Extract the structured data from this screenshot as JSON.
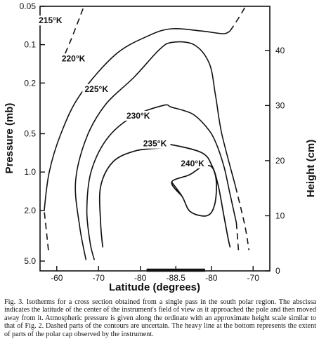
{
  "chart_data": {
    "type": "contour",
    "title": "",
    "xlabel": "Latitude (degrees)",
    "ylabel_left": "Pressure (mb)",
    "ylabel_right": "Height (cm)",
    "x_ticks": [
      "-60",
      "-70",
      "-80",
      "-88.5",
      "-80",
      "-70"
    ],
    "y_left_ticks": [
      "0.05",
      "0.1",
      "0.2",
      "0.5",
      "1.0",
      "2.0",
      "5.0"
    ],
    "y_right_ticks": [
      "0",
      "10",
      "20",
      "30",
      "40"
    ],
    "y_left_scale": "log",
    "ylim_pressure": [
      5.0,
      0.05
    ],
    "ylim_height": [
      0,
      48
    ],
    "contours": [
      {
        "label": "215°K",
        "style": "dashed",
        "points": [
          [
            -61.0,
            0.14
          ],
          [
            -63.5,
            0.09
          ],
          [
            -66.5,
            0.05
          ]
        ]
      },
      {
        "label": "220°K",
        "style": "mixed",
        "points": [
          [
            -58.0,
            4.1
          ],
          [
            -57.0,
            2.0
          ],
          [
            -58.2,
            1.0
          ],
          [
            -61.0,
            0.5
          ],
          [
            -65.5,
            0.25
          ],
          [
            -74.0,
            0.12
          ],
          [
            -82.0,
            0.085
          ],
          [
            -87.5,
            0.075
          ],
          [
            -82.5,
            0.078
          ],
          [
            -77.2,
            0.082
          ],
          [
            -75.5,
            0.078
          ],
          [
            -73.5,
            0.062
          ],
          [
            -71.8,
            0.05
          ]
        ],
        "dashed_segments": [
          [
            0,
            1
          ],
          [
            10,
            12
          ]
        ]
      },
      {
        "label": "225°K",
        "style": "mixed",
        "points": [
          [
            -67.0,
            4.9
          ],
          [
            -65.5,
            2.7
          ],
          [
            -64.5,
            1.2
          ],
          [
            -67.0,
            0.55
          ],
          [
            -71.5,
            0.3
          ],
          [
            -78.5,
            0.18
          ],
          [
            -84.5,
            0.11
          ],
          [
            -87.5,
            0.096
          ],
          [
            -84.2,
            0.1
          ],
          [
            -80.5,
            0.14
          ],
          [
            -79.0,
            0.25
          ],
          [
            -77.5,
            0.5
          ],
          [
            -74.2,
            1.3
          ],
          [
            -72.0,
            2.6
          ],
          [
            -71.0,
            4.1
          ]
        ],
        "dashed_segments": [
          [
            12,
            14
          ]
        ]
      },
      {
        "label": "230°K",
        "style": "mixed",
        "points": [
          [
            -69.0,
            4.9
          ],
          [
            -68.0,
            3.6
          ],
          [
            -67.2,
            2.0
          ],
          [
            -68.2,
            1.0
          ],
          [
            -72.0,
            0.55
          ],
          [
            -78.0,
            0.37
          ],
          [
            -85.5,
            0.3
          ],
          [
            -87.5,
            0.31
          ],
          [
            -84.5,
            0.35
          ],
          [
            -81.0,
            0.45
          ],
          [
            -79.0,
            0.58
          ],
          [
            -77.0,
            0.9
          ],
          [
            -75.5,
            1.5
          ],
          [
            -74.0,
            2.5
          ],
          [
            -73.5,
            4.1
          ]
        ],
        "dashed_segments": [
          [
            13,
            14
          ]
        ]
      },
      {
        "label": "235°K",
        "style": "solid",
        "points": [
          [
            -71.0,
            3.9
          ],
          [
            -70.5,
            2.5
          ],
          [
            -70.5,
            1.3
          ],
          [
            -73.5,
            0.83
          ],
          [
            -79.0,
            0.68
          ],
          [
            -86.0,
            0.64
          ],
          [
            -86.0,
            0.6
          ],
          [
            -82.5,
            0.7
          ],
          [
            -79.8,
            0.9
          ],
          [
            -78.3,
            1.3
          ],
          [
            -77.0,
            2.2
          ],
          [
            -76.0,
            3.3
          ],
          [
            -75.5,
            3.9
          ]
        ]
      },
      {
        "label": "240°K",
        "style": "solid",
        "points": [
          [
            -87.5,
            1.2
          ],
          [
            -87.0,
            1.55
          ],
          [
            -85.0,
            2.05
          ],
          [
            -81.0,
            2.2
          ],
          [
            -79.2,
            1.8
          ],
          [
            -78.8,
            1.2
          ],
          [
            -79.8,
            0.92
          ],
          [
            -82.0,
            0.9
          ],
          [
            -85.2,
            1.05
          ]
        ]
      }
    ],
    "polar_cap_bar": [
      -81.5,
      -81.5
    ]
  },
  "caption": "Fig. 3. Isotherms for a cross section obtained from a single pass in the south polar region. The abscissa indicates the latitude of the center of the instrument's field of view as it approached the pole and then moved away from it. Atmospheric pressure is given along the ordinate with an approximate height scale similar to that of Fig. 2. Dashed parts of the contours are uncertain. The heavy line at the bottom represents the extent of parts of the polar cap observed by the instrument.",
  "colors": {
    "ink": "#111111",
    "background": "#ffffff"
  }
}
